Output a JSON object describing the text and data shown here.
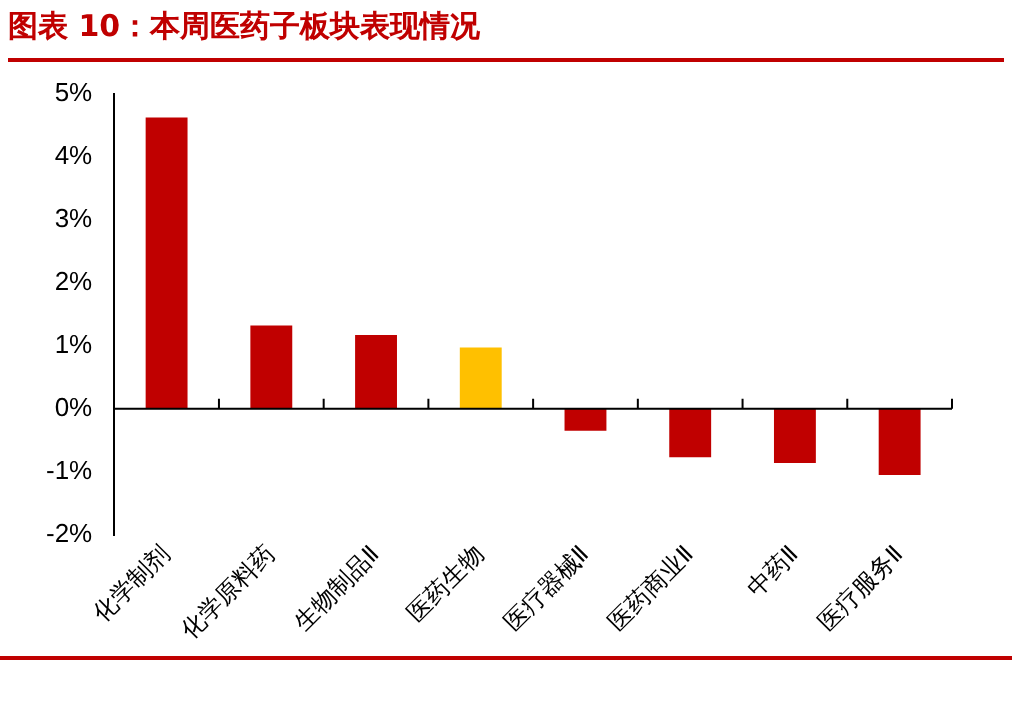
{
  "chart_data": {
    "type": "bar",
    "title": "图表 10：本周医药子板块表现情况",
    "categories": [
      "化学制剂",
      "化学原料药",
      "生物制品Ⅱ",
      "医药生物",
      "医疗器械Ⅱ",
      "医药商业Ⅱ",
      "中药Ⅱ",
      "医疗服务Ⅱ"
    ],
    "values": [
      4.62,
      1.32,
      1.17,
      0.97,
      -0.35,
      -0.77,
      -0.86,
      -1.05
    ],
    "colors": [
      "#c00000",
      "#c00000",
      "#c00000",
      "#ffc000",
      "#c00000",
      "#c00000",
      "#c00000",
      "#c00000"
    ],
    "ylim": [
      -2,
      5
    ],
    "yticks": [
      {
        "value": -2,
        "label": "-2%"
      },
      {
        "value": -1,
        "label": "-1%"
      },
      {
        "value": 0,
        "label": "0%"
      },
      {
        "value": 1,
        "label": "1%"
      },
      {
        "value": 2,
        "label": "2%"
      },
      {
        "value": 3,
        "label": "3%"
      },
      {
        "value": 4,
        "label": "4%"
      },
      {
        "value": 5,
        "label": "5%"
      }
    ],
    "legend": false
  }
}
